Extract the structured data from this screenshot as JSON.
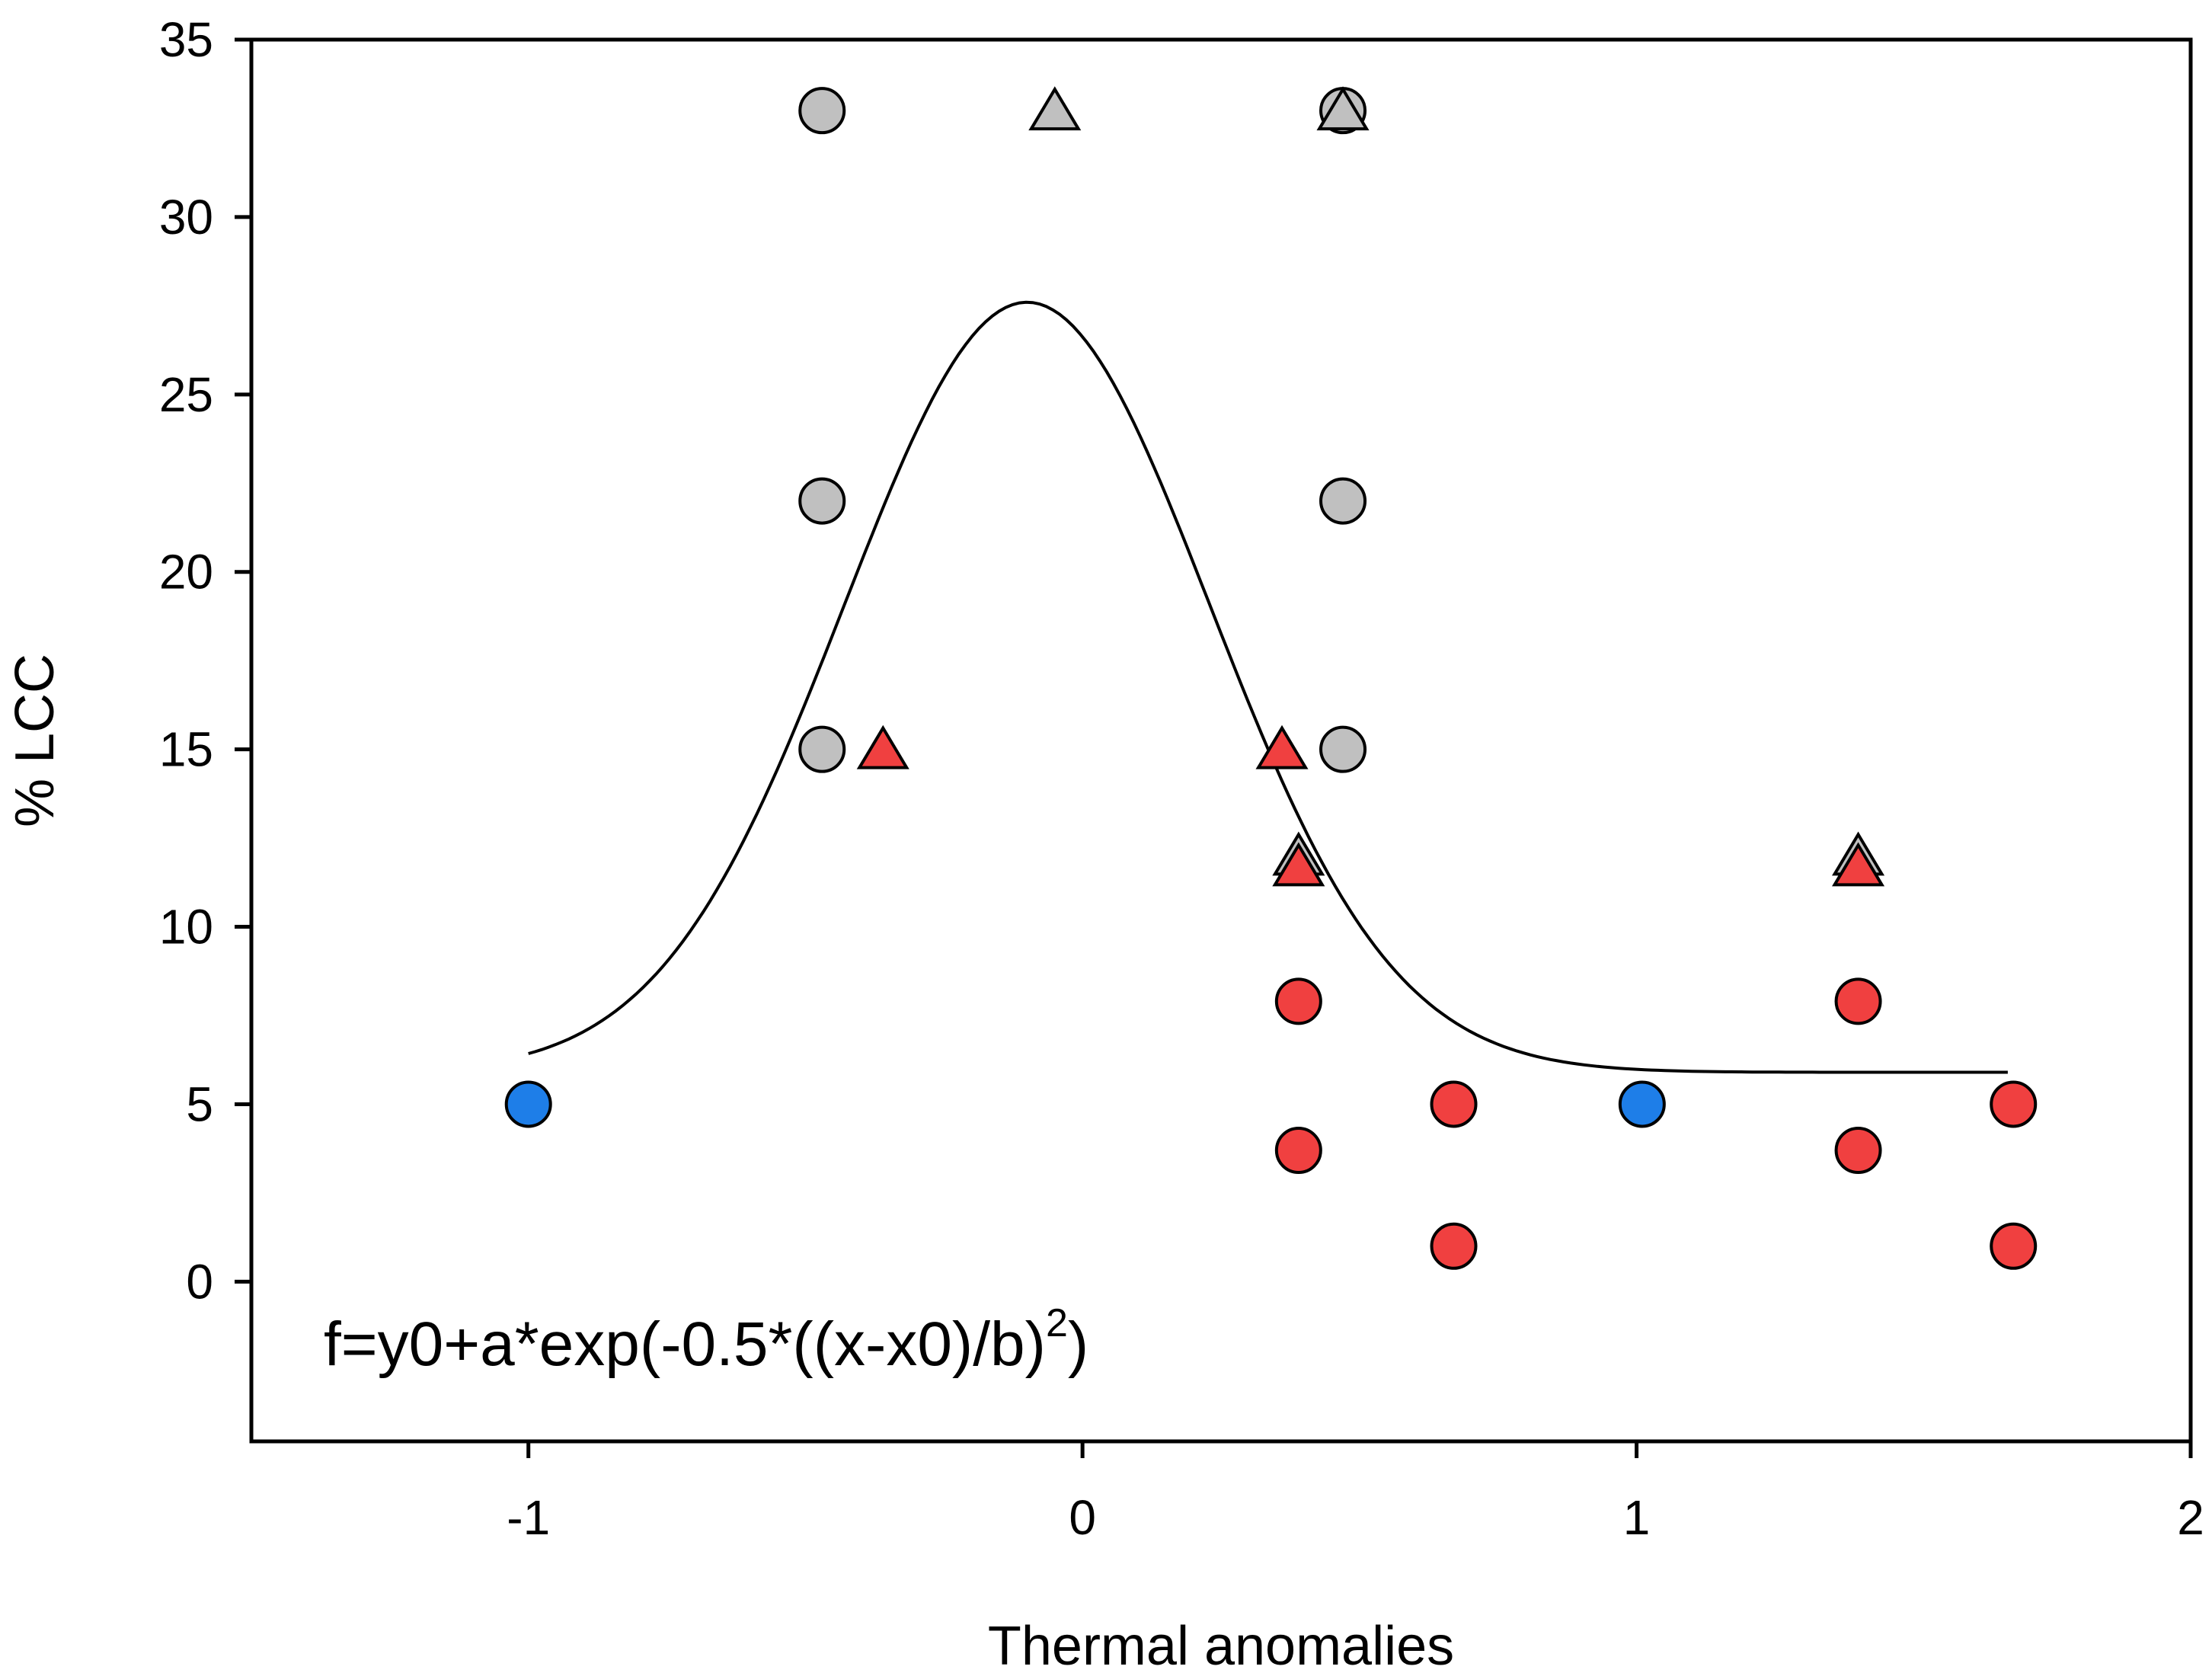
{
  "chart_data": {
    "type": "scatter",
    "title": "",
    "xlabel": "Thermal anomalies",
    "ylabel": "% LCC",
    "xlim": [
      -1.5,
      2
    ],
    "ylim": [
      -4.5,
      35
    ],
    "xticks": [
      -1,
      0,
      1,
      2
    ],
    "yticks": [
      0,
      5,
      10,
      15,
      20,
      25,
      30,
      35
    ],
    "grid": false,
    "equation": {
      "text": "f=y0+a*exp(-0.5*((x-x0)/b)",
      "superscript": "2",
      "suffix": ")"
    },
    "colors": {
      "gray": "#c0c0c0",
      "red": "#f04040",
      "blue": "#1e7ee8",
      "stroke": "#000000",
      "curve": "#000000"
    },
    "series": [
      {
        "name": "gray circles",
        "marker": "circle",
        "color": "gray",
        "points": [
          [
            -0.47,
            33
          ],
          [
            -0.47,
            22
          ],
          [
            -0.47,
            15
          ],
          [
            0.47,
            33
          ],
          [
            0.47,
            22
          ],
          [
            0.47,
            15
          ]
        ]
      },
      {
        "name": "gray triangles",
        "marker": "triangle",
        "color": "gray",
        "points": [
          [
            -0.05,
            33
          ],
          [
            0.47,
            33
          ],
          [
            0.39,
            12
          ],
          [
            1.4,
            12
          ]
        ]
      },
      {
        "name": "red triangles",
        "marker": "triangle",
        "color": "red",
        "points": [
          [
            -0.36,
            15
          ],
          [
            0.36,
            15
          ],
          [
            0.39,
            11.7
          ],
          [
            1.4,
            11.7
          ]
        ]
      },
      {
        "name": "red circles",
        "marker": "circle",
        "color": "red",
        "points": [
          [
            0.39,
            7.9
          ],
          [
            0.39,
            3.7
          ],
          [
            0.67,
            5
          ],
          [
            0.67,
            1
          ],
          [
            1.4,
            7.9
          ],
          [
            1.4,
            3.7
          ],
          [
            1.68,
            5
          ],
          [
            1.68,
            1
          ]
        ]
      },
      {
        "name": "blue circles",
        "marker": "circle",
        "color": "blue",
        "points": [
          [
            -1.0,
            5
          ],
          [
            1.01,
            5
          ]
        ]
      }
    ],
    "fit_curve": {
      "model": "gaussian",
      "y0": 5.9,
      "a": 21.7,
      "x0": -0.1,
      "b": 0.33,
      "x_range": [
        -1.0,
        1.67
      ]
    }
  }
}
